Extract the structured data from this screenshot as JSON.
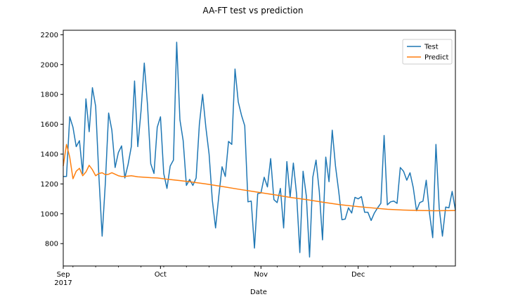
{
  "chart_data": {
    "type": "line",
    "title": "AA-FT test vs prediction",
    "xlabel": "Date",
    "ylabel": "",
    "x_start": "2017-09-01",
    "x_end": "2017-12-31",
    "ylim": [
      650,
      2230
    ],
    "y_ticks": [
      800,
      1000,
      1200,
      1400,
      1600,
      1800,
      2000,
      2200
    ],
    "x_ticks": [
      {
        "date": "2017-09-01",
        "label": "Sep",
        "sublabel": "2017"
      },
      {
        "date": "2017-10-01",
        "label": "Oct",
        "sublabel": ""
      },
      {
        "date": "2017-11-01",
        "label": "Nov",
        "sublabel": ""
      },
      {
        "date": "2017-12-01",
        "label": "Dec",
        "sublabel": ""
      }
    ],
    "grid": false,
    "legend_position": "top-right",
    "series": [
      {
        "name": "Test",
        "color": "#1f77b4",
        "x": [
          "2017-09-01",
          "2017-09-02",
          "2017-09-03",
          "2017-09-04",
          "2017-09-05",
          "2017-09-06",
          "2017-09-07",
          "2017-09-08",
          "2017-09-09",
          "2017-09-10",
          "2017-09-11",
          "2017-09-12",
          "2017-09-13",
          "2017-09-14",
          "2017-09-15",
          "2017-09-16",
          "2017-09-17",
          "2017-09-18",
          "2017-09-19",
          "2017-09-20",
          "2017-09-21",
          "2017-09-22",
          "2017-09-23",
          "2017-09-24",
          "2017-09-25",
          "2017-09-26",
          "2017-09-27",
          "2017-09-28",
          "2017-09-29",
          "2017-09-30",
          "2017-10-01",
          "2017-10-02",
          "2017-10-03",
          "2017-10-04",
          "2017-10-05",
          "2017-10-06",
          "2017-10-07",
          "2017-10-08",
          "2017-10-09",
          "2017-10-10",
          "2017-10-11",
          "2017-10-12",
          "2017-10-13",
          "2017-10-14",
          "2017-10-15",
          "2017-10-16",
          "2017-10-17",
          "2017-10-18",
          "2017-10-19",
          "2017-10-20",
          "2017-10-21",
          "2017-10-22",
          "2017-10-23",
          "2017-10-24",
          "2017-10-25",
          "2017-10-26",
          "2017-10-27",
          "2017-10-28",
          "2017-10-29",
          "2017-10-30",
          "2017-10-31",
          "2017-11-01",
          "2017-11-02",
          "2017-11-03",
          "2017-11-04",
          "2017-11-05",
          "2017-11-06",
          "2017-11-07",
          "2017-11-08",
          "2017-11-09",
          "2017-11-10",
          "2017-11-11",
          "2017-11-12",
          "2017-11-13",
          "2017-11-14",
          "2017-11-15",
          "2017-11-16",
          "2017-11-17",
          "2017-11-18",
          "2017-11-19",
          "2017-11-20",
          "2017-11-21",
          "2017-11-22",
          "2017-11-23",
          "2017-11-24",
          "2017-11-25",
          "2017-11-26",
          "2017-11-27",
          "2017-11-28",
          "2017-11-29",
          "2017-11-30",
          "2017-12-01",
          "2017-12-02",
          "2017-12-03",
          "2017-12-04",
          "2017-12-05",
          "2017-12-06",
          "2017-12-07",
          "2017-12-08",
          "2017-12-09",
          "2017-12-10",
          "2017-12-11",
          "2017-12-12",
          "2017-12-13",
          "2017-12-14",
          "2017-12-15",
          "2017-12-16",
          "2017-12-17",
          "2017-12-18",
          "2017-12-19",
          "2017-12-20",
          "2017-12-21",
          "2017-12-22",
          "2017-12-23",
          "2017-12-24",
          "2017-12-25",
          "2017-12-26",
          "2017-12-27",
          "2017-12-28",
          "2017-12-29",
          "2017-12-30",
          "2017-12-31"
        ],
        "values": [
          1250,
          1250,
          1650,
          1580,
          1450,
          1490,
          1270,
          1770,
          1550,
          1845,
          1720,
          1250,
          850,
          1210,
          1675,
          1560,
          1310,
          1410,
          1455,
          1240,
          1330,
          1450,
          1890,
          1450,
          1690,
          2010,
          1730,
          1335,
          1270,
          1580,
          1650,
          1270,
          1170,
          1320,
          1360,
          2150,
          1630,
          1490,
          1190,
          1230,
          1190,
          1240,
          1600,
          1800,
          1580,
          1400,
          1090,
          905,
          1120,
          1315,
          1250,
          1485,
          1465,
          1970,
          1750,
          1660,
          1590,
          1080,
          1085,
          770,
          1135,
          1140,
          1245,
          1180,
          1370,
          1095,
          1075,
          1170,
          905,
          1350,
          1110,
          1340,
          1130,
          740,
          1285,
          1120,
          710,
          1245,
          1360,
          1150,
          825,
          1380,
          1215,
          1560,
          1320,
          1150,
          960,
          965,
          1040,
          1005,
          1110,
          1100,
          1115,
          1010,
          1010,
          955,
          1005,
          1040,
          1070,
          1525,
          1060,
          1080,
          1085,
          1070,
          1310,
          1285,
          1225,
          1275,
          1175,
          1020,
          1075,
          1085,
          1225,
          1005,
          840,
          1465,
          1040,
          850,
          1045,
          1040,
          1150,
          1025
        ]
      },
      {
        "name": "Predict",
        "color": "#ff7f0e",
        "x": [
          "2017-09-01",
          "2017-09-02",
          "2017-09-03",
          "2017-09-04",
          "2017-09-05",
          "2017-09-06",
          "2017-09-07",
          "2017-09-08",
          "2017-09-09",
          "2017-09-10",
          "2017-09-11",
          "2017-09-12",
          "2017-09-13",
          "2017-09-14",
          "2017-09-15",
          "2017-09-16",
          "2017-09-17",
          "2017-09-18",
          "2017-09-19",
          "2017-09-20",
          "2017-09-22",
          "2017-09-24",
          "2017-09-26",
          "2017-09-28",
          "2017-09-30",
          "2017-10-03",
          "2017-10-06",
          "2017-10-10",
          "2017-10-15",
          "2017-10-20",
          "2017-10-25",
          "2017-10-30",
          "2017-11-05",
          "2017-11-10",
          "2017-11-15",
          "2017-11-20",
          "2017-11-25",
          "2017-11-30",
          "2017-12-05",
          "2017-12-10",
          "2017-12-15",
          "2017-12-20",
          "2017-12-25",
          "2017-12-31"
        ],
        "values": [
          1320,
          1465,
          1380,
          1235,
          1285,
          1305,
          1255,
          1280,
          1325,
          1295,
          1255,
          1270,
          1275,
          1262,
          1265,
          1275,
          1265,
          1255,
          1250,
          1250,
          1255,
          1248,
          1245,
          1242,
          1240,
          1232,
          1225,
          1215,
          1200,
          1183,
          1165,
          1148,
          1128,
          1110,
          1095,
          1078,
          1062,
          1050,
          1040,
          1030,
          1025,
          1022,
          1020,
          1022
        ]
      }
    ]
  }
}
